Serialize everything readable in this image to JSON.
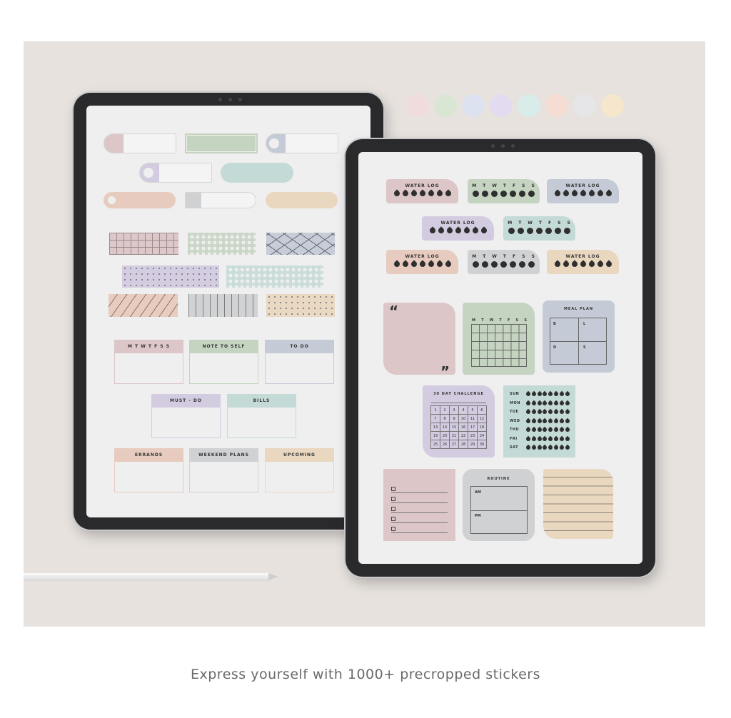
{
  "caption": "Express yourself with 1000+ precropped stickers",
  "palette_dots": [
    "#f1dcdc",
    "#d9e6d4",
    "#dce2ef",
    "#e3dcf1",
    "#d8ecea",
    "#f6ddd4",
    "#e6e6e9",
    "#f6e7cc"
  ],
  "colors": {
    "pink": "#dcc6c8",
    "green": "#c5d3c1",
    "blue": "#c5cbd6",
    "lavender": "#d3cbe0",
    "mint": "#c4dad6",
    "peach": "#e7cbbe",
    "gray": "#d0d1d3",
    "tan": "#e9d7c0"
  },
  "left_screen": {
    "note_cards": [
      {
        "title": "M  T  W  T  F  S  S",
        "color": "pink"
      },
      {
        "title": "NOTE TO SELF",
        "color": "green"
      },
      {
        "title": "TO DO",
        "color": "blue"
      },
      {
        "title": "MUST - DO",
        "color": "lavender"
      },
      {
        "title": "BILLS",
        "color": "mint"
      },
      {
        "title": "ERRANDS",
        "color": "peach"
      },
      {
        "title": "WEEKEND PLANS",
        "color": "gray"
      },
      {
        "title": "UPCOMING",
        "color": "tan"
      }
    ]
  },
  "right_screen": {
    "water_log_label": "WATER LOG",
    "week_days": [
      "M",
      "T",
      "W",
      "T",
      "F",
      "S",
      "S"
    ],
    "water_logs": [
      {
        "type": "water",
        "color": "pink"
      },
      {
        "type": "week",
        "color": "green"
      },
      {
        "type": "water",
        "color": "blue"
      },
      {
        "type": "water",
        "color": "lavender"
      },
      {
        "type": "week",
        "color": "mint"
      },
      {
        "type": "water",
        "color": "peach"
      },
      {
        "type": "week",
        "color": "gray"
      },
      {
        "type": "water",
        "color": "tan"
      }
    ],
    "quote_open": "“",
    "quote_close": "”",
    "calendar_days": [
      "M",
      "T",
      "W",
      "T",
      "F",
      "S",
      "S"
    ],
    "meal_plan": {
      "title": "MEAL PLAN",
      "cells": [
        "B",
        "L",
        "D",
        "S"
      ]
    },
    "challenge": {
      "title": "30 DAY CHALLENGE",
      "numbers": [
        1,
        2,
        3,
        4,
        5,
        6,
        7,
        8,
        9,
        10,
        11,
        12,
        13,
        14,
        15,
        16,
        17,
        18,
        19,
        20,
        21,
        22,
        23,
        24,
        25,
        26,
        27,
        28,
        29,
        30
      ]
    },
    "hydration_days": [
      "SUN",
      "MON",
      "TUE",
      "WED",
      "THU",
      "FRI",
      "SAT"
    ],
    "routine": {
      "title": "ROUTINE",
      "am": "AM",
      "pm": "PM"
    }
  }
}
